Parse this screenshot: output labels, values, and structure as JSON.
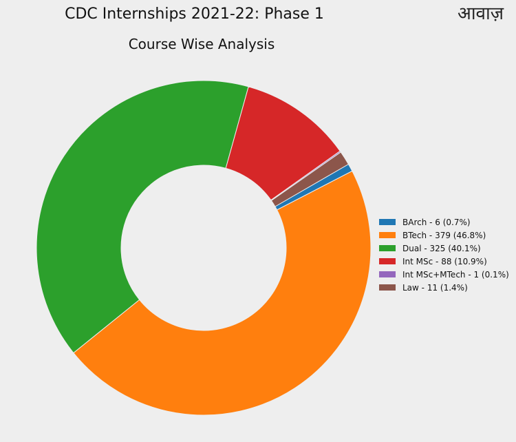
{
  "logo_text": "आवाज़",
  "chart_data": {
    "type": "pie",
    "donut": true,
    "title": "CDC Internships 2021-22: Phase 1",
    "subtitle": "Course Wise Analysis",
    "legend_position": "right",
    "slices": [
      {
        "label": "BArch - 6 (0.7%)",
        "value": 6,
        "color": "#1f77b4"
      },
      {
        "label": "BTech - 379 (46.8%)",
        "value": 379,
        "color": "#ff7f0e"
      },
      {
        "label": "Dual - 325 (40.1%)",
        "value": 325,
        "color": "#2ca02c"
      },
      {
        "label": "Int MSc - 88 (10.9%)",
        "value": 88,
        "color": "#d62728"
      },
      {
        "label": "Int MSc+MTech - 1 (0.1%)",
        "value": 1,
        "color": "#9467bd"
      },
      {
        "label": "Law - 11 (1.4%)",
        "value": 11,
        "color": "#8c564b"
      }
    ]
  }
}
